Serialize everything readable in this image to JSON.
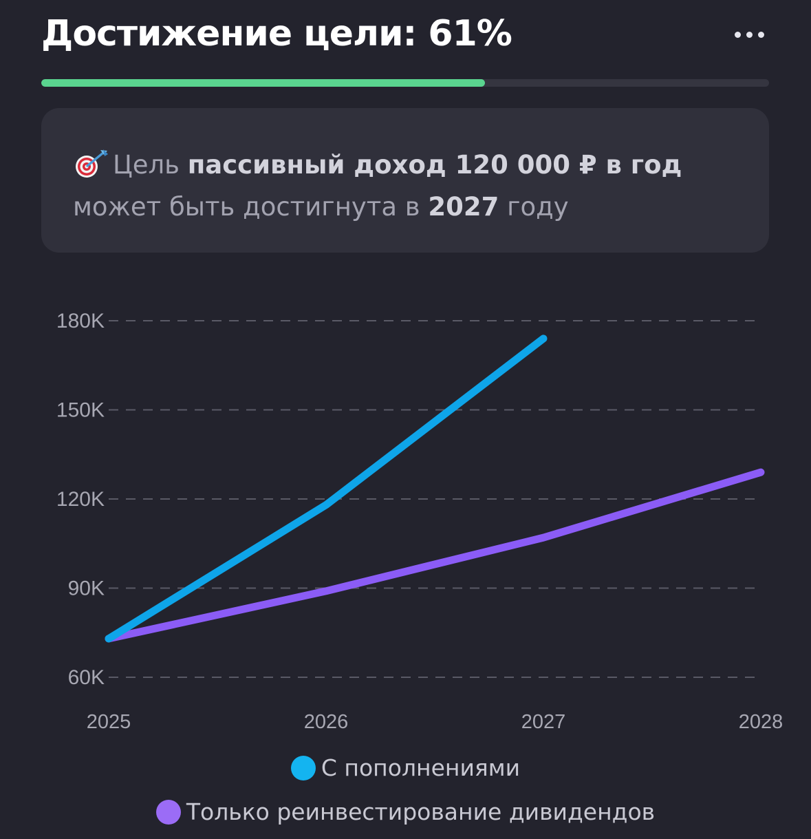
{
  "header": {
    "title": "Достижение цели: 61%",
    "more_icon": "more-horizontal-icon"
  },
  "progress": {
    "percent": 61,
    "color": "#5ad48f",
    "track_color": "#353540"
  },
  "goal_card": {
    "icon": "target-dart-icon",
    "text_prefix": "Цель ",
    "goal_bold": "пассивный доход 120 000 ₽ в год",
    "text_middle": "может быть достигнута в ",
    "year_bold": "2027",
    "text_suffix": " году"
  },
  "chart_data": {
    "type": "line",
    "x": [
      2025,
      2026,
      2027,
      2028
    ],
    "x_tick_labels": [
      "2025",
      "2026",
      "2027",
      "2028"
    ],
    "y_tick_values": [
      60000,
      90000,
      120000,
      150000,
      180000
    ],
    "y_tick_labels": [
      "60K",
      "90K",
      "120K",
      "150K",
      "180K"
    ],
    "ylim": [
      60000,
      180000
    ],
    "grid": true,
    "legend_position": "bottom",
    "series": [
      {
        "name": "С пополнениями",
        "color": "#0ea5e9",
        "legend_color": "#14b4f0",
        "values": [
          73000,
          118000,
          174000,
          null
        ]
      },
      {
        "name": "Только реинвестирование дивидендов",
        "color": "#8b5cf6",
        "legend_color": "#9b6cf6",
        "values": [
          73000,
          89000,
          107000,
          129000
        ]
      }
    ]
  }
}
